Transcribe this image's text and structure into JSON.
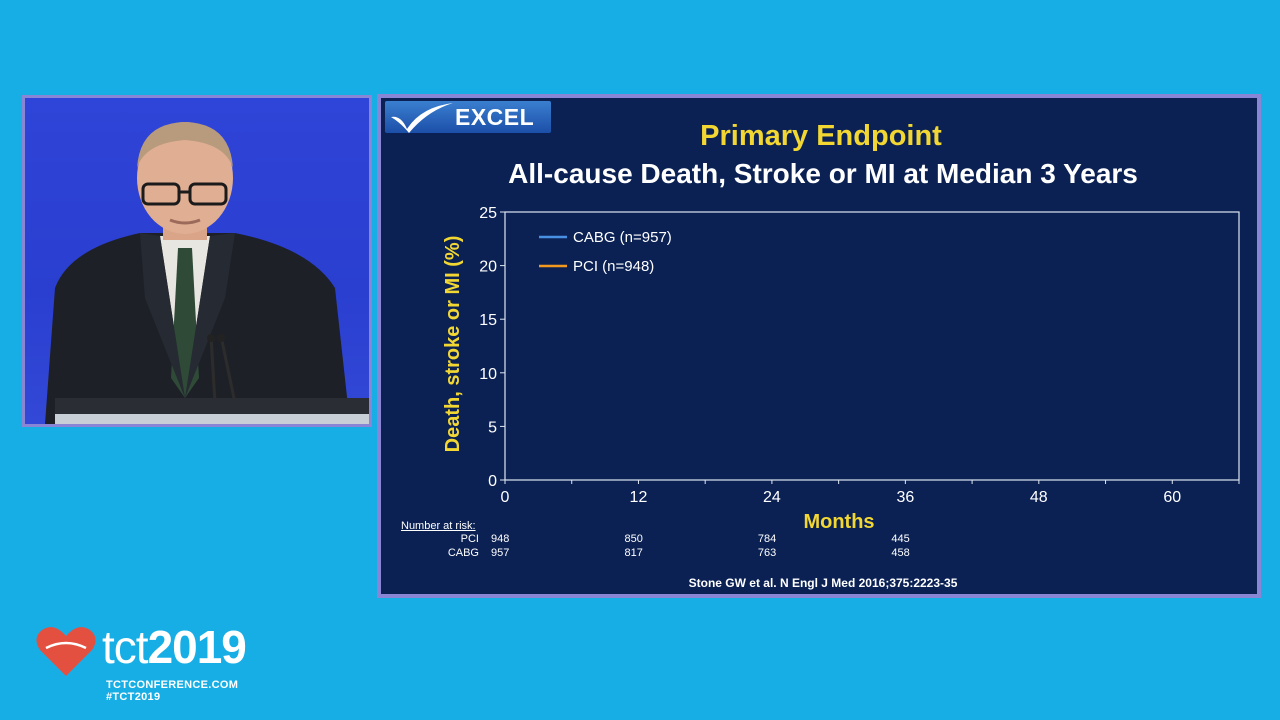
{
  "slide": {
    "logo_text": "EXCEL",
    "title": "Primary Endpoint",
    "subtitle": "All-cause Death, Stroke or MI at Median 3 Years",
    "citation": "Stone GW et al. N Engl J Med 2016;375:2223-35"
  },
  "chart_data": {
    "type": "line",
    "xlabel": "Months",
    "ylabel": "Death, stroke or MI (%)",
    "xlim": [
      0,
      66
    ],
    "ylim": [
      0,
      25
    ],
    "x_ticks": [
      0,
      12,
      24,
      36,
      48,
      60
    ],
    "y_ticks": [
      0,
      5,
      10,
      15,
      20,
      25
    ],
    "legend_position": "top-left",
    "series": [
      {
        "name": "CABG (n=957)",
        "color": "#4a90e2",
        "values": []
      },
      {
        "name": "PCI (n=948)",
        "color": "#f39a1e",
        "values": []
      }
    ]
  },
  "risk_table": {
    "header": "Number at risk:",
    "rows": [
      {
        "label": "PCI",
        "values": [
          "948",
          "850",
          "784",
          "445"
        ]
      },
      {
        "label": "CABG",
        "values": [
          "957",
          "817",
          "763",
          "458"
        ]
      }
    ]
  },
  "branding": {
    "wordmark_light": "tct",
    "wordmark_bold": "2019",
    "url": "TCTCONFERENCE.COM",
    "hashtag": "#TCT2019"
  },
  "colors": {
    "background": "#17aee6",
    "slide_bg": "#0b2154",
    "title": "#f2d733",
    "frame": "#8a86d6"
  }
}
